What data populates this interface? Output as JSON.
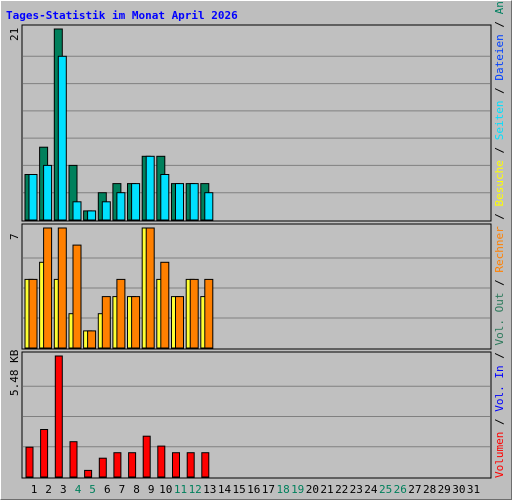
{
  "chart_data": {
    "type": "bar",
    "title": "Tages-Statistik im Monat April 2026",
    "categories": [
      "1",
      "2",
      "3",
      "4",
      "5",
      "6",
      "7",
      "8",
      "9",
      "10",
      "11",
      "12",
      "13",
      "14",
      "15",
      "16",
      "17",
      "18",
      "19",
      "20",
      "21",
      "22",
      "23",
      "24",
      "25",
      "26",
      "27",
      "28",
      "29",
      "30",
      "31"
    ],
    "weekend_days": [
      4,
      5,
      11,
      12,
      18,
      19,
      25,
      26
    ],
    "colors": {
      "anfragen": "#008060",
      "dateien": "#0040ff",
      "seiten": "#00e0ff",
      "besuche": "#ffff00",
      "rechner": "#ff8000",
      "vol_out": "#2e7a5c",
      "vol_in": "#0000ff",
      "volumen": "#ff0000",
      "weekend": "#00805c",
      "title": "#0000ff",
      "plot_bg": "#c0c0c0",
      "grid": "#808080"
    },
    "panels": [
      {
        "name": "hits",
        "ymax_label": "21",
        "ymax": 21,
        "series": [
          {
            "name": "Anfragen",
            "color": "#00805c",
            "values": [
              5,
              8,
              21,
              6,
              1,
              3,
              4,
              4,
              7,
              7,
              4,
              4,
              4
            ]
          },
          {
            "name": "Seiten",
            "color": "#00e0ff",
            "values": [
              5,
              6,
              18,
              2,
              1,
              2,
              3,
              4,
              7,
              5,
              4,
              4,
              3
            ]
          }
        ]
      },
      {
        "name": "visits",
        "ymax_label": "7",
        "ymax": 7,
        "series": [
          {
            "name": "Besuche",
            "color": "#ffff33",
            "values": [
              4,
              5,
              4,
              2,
              1,
              2,
              3,
              3,
              7,
              4,
              3,
              4,
              3
            ]
          },
          {
            "name": "Rechner",
            "color": "#ff8000",
            "values": [
              4,
              7,
              7,
              6,
              1,
              3,
              4,
              3,
              7,
              5,
              3,
              4,
              4
            ]
          }
        ]
      },
      {
        "name": "volume",
        "ymax_label": "5.48 KB",
        "ymax": 5.48,
        "series": [
          {
            "name": "Volumen",
            "color": "#ff0000",
            "values": [
              1.35,
              2.15,
              5.48,
              1.6,
              0.3,
              0.85,
              1.1,
              1.1,
              1.85,
              1.4,
              1.1,
              1.1,
              1.1
            ]
          }
        ]
      }
    ],
    "legend_groups": [
      {
        "items": [
          {
            "text": "Volumen",
            "color": "#ff0000"
          },
          {
            "text": " / ",
            "color": "#000000"
          },
          {
            "text": "Vol. In",
            "color": "#0000ff"
          },
          {
            "text": " / ",
            "color": "#000000"
          },
          {
            "text": "Vol. Out",
            "color": "#2e7a5c"
          },
          {
            "text": " / ",
            "color": "#000000"
          },
          {
            "text": "Rechner",
            "color": "#ff8000"
          },
          {
            "text": " / ",
            "color": "#000000"
          },
          {
            "text": "Besuche",
            "color": "#ffff00"
          },
          {
            "text": " / ",
            "color": "#000000"
          },
          {
            "text": "Seiten",
            "color": "#00e0ff"
          },
          {
            "text": " / ",
            "color": "#000000"
          },
          {
            "text": "Dateien",
            "color": "#0040ff"
          },
          {
            "text": " / ",
            "color": "#000000"
          },
          {
            "text": "Anfragen",
            "color": "#008060"
          }
        ]
      }
    ]
  }
}
